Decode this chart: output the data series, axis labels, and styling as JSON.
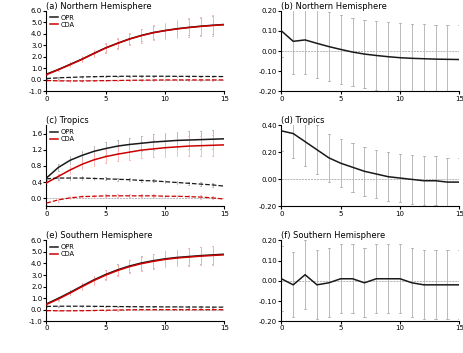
{
  "title_a": "(a) Northern Hemisphere",
  "title_b": "(b) Northern Hemisphere",
  "title_c": "(c) Tropics",
  "title_d": "(d) Tropics",
  "title_e": "(e) Southern Hemisphere",
  "title_f": "(f) Southern Hemisphere",
  "x": [
    0,
    1,
    2,
    3,
    4,
    5,
    6,
    7,
    8,
    9,
    10,
    11,
    12,
    13,
    14,
    15
  ],
  "a_opr_rmse": [
    0.5,
    0.9,
    1.35,
    1.8,
    2.3,
    2.78,
    3.18,
    3.55,
    3.85,
    4.1,
    4.28,
    4.43,
    4.55,
    4.65,
    4.73,
    4.8
  ],
  "a_opr_rmse_std": [
    0.05,
    0.1,
    0.17,
    0.22,
    0.28,
    0.34,
    0.4,
    0.46,
    0.52,
    0.56,
    0.6,
    0.65,
    0.7,
    0.74,
    0.78,
    0.82
  ],
  "a_opr_bias": [
    0.12,
    0.18,
    0.22,
    0.26,
    0.28,
    0.3,
    0.31,
    0.32,
    0.32,
    0.32,
    0.32,
    0.31,
    0.31,
    0.3,
    0.3,
    0.29
  ],
  "a_opr_bias_std": [
    0.05,
    0.06,
    0.06,
    0.06,
    0.06,
    0.06,
    0.06,
    0.06,
    0.06,
    0.06,
    0.06,
    0.06,
    0.06,
    0.06,
    0.06,
    0.06
  ],
  "a_cda_rmse": [
    0.45,
    0.88,
    1.32,
    1.78,
    2.28,
    2.76,
    3.16,
    3.53,
    3.83,
    4.08,
    4.26,
    4.41,
    4.53,
    4.63,
    4.71,
    4.78
  ],
  "a_cda_rmse_std": [
    0.05,
    0.13,
    0.2,
    0.27,
    0.33,
    0.4,
    0.47,
    0.54,
    0.6,
    0.65,
    0.7,
    0.75,
    0.8,
    0.85,
    0.9,
    0.95
  ],
  "a_cda_bias": [
    -0.05,
    -0.08,
    -0.09,
    -0.09,
    -0.08,
    -0.06,
    -0.05,
    -0.03,
    -0.02,
    -0.01,
    0.0,
    0.0,
    0.0,
    0.0,
    0.0,
    0.0
  ],
  "a_cda_bias_std": [
    0.05,
    0.05,
    0.05,
    0.05,
    0.05,
    0.05,
    0.05,
    0.05,
    0.05,
    0.05,
    0.05,
    0.05,
    0.05,
    0.05,
    0.05,
    0.05
  ],
  "a_ylim": [
    -1.0,
    6.0
  ],
  "a_yticks": [
    -1.0,
    0.0,
    1.0,
    2.0,
    3.0,
    4.0,
    5.0,
    6.0
  ],
  "b_diff": [
    0.1,
    0.048,
    0.055,
    0.038,
    0.022,
    0.008,
    -0.005,
    -0.015,
    -0.022,
    -0.028,
    -0.033,
    -0.036,
    -0.038,
    -0.04,
    -0.041,
    -0.042
  ],
  "b_diff_std": [
    0.13,
    0.16,
    0.17,
    0.17,
    0.17,
    0.17,
    0.17,
    0.17,
    0.17,
    0.17,
    0.17,
    0.17,
    0.17,
    0.17,
    0.17,
    0.17
  ],
  "b_ylim": [
    -0.2,
    0.2
  ],
  "b_yticks": [
    -0.2,
    -0.1,
    0.0,
    0.1,
    0.2
  ],
  "c_opr_rmse": [
    0.5,
    0.76,
    0.94,
    1.06,
    1.16,
    1.23,
    1.29,
    1.33,
    1.36,
    1.39,
    1.41,
    1.43,
    1.44,
    1.45,
    1.46,
    1.47
  ],
  "c_opr_rmse_std": [
    0.05,
    0.08,
    0.1,
    0.12,
    0.14,
    0.15,
    0.16,
    0.17,
    0.18,
    0.19,
    0.2,
    0.21,
    0.22,
    0.22,
    0.23,
    0.24
  ],
  "c_opr_bias": [
    0.48,
    0.5,
    0.5,
    0.5,
    0.49,
    0.48,
    0.47,
    0.46,
    0.44,
    0.43,
    0.41,
    0.39,
    0.37,
    0.35,
    0.33,
    0.3
  ],
  "c_opr_bias_std": [
    0.04,
    0.04,
    0.04,
    0.04,
    0.04,
    0.04,
    0.04,
    0.04,
    0.04,
    0.04,
    0.04,
    0.04,
    0.04,
    0.04,
    0.04,
    0.04
  ],
  "c_cda_rmse": [
    0.38,
    0.54,
    0.7,
    0.84,
    0.95,
    1.03,
    1.09,
    1.14,
    1.19,
    1.22,
    1.25,
    1.27,
    1.29,
    1.3,
    1.31,
    1.32
  ],
  "c_cda_rmse_std": [
    0.04,
    0.07,
    0.1,
    0.12,
    0.15,
    0.16,
    0.18,
    0.19,
    0.2,
    0.21,
    0.22,
    0.23,
    0.24,
    0.25,
    0.26,
    0.27
  ],
  "c_cda_bias": [
    -0.12,
    -0.04,
    0.01,
    0.04,
    0.05,
    0.06,
    0.06,
    0.06,
    0.06,
    0.06,
    0.05,
    0.05,
    0.04,
    0.03,
    0.01,
    -0.02
  ],
  "c_cda_bias_std": [
    0.04,
    0.04,
    0.04,
    0.04,
    0.04,
    0.04,
    0.04,
    0.04,
    0.04,
    0.04,
    0.04,
    0.04,
    0.04,
    0.04,
    0.04,
    0.04
  ],
  "c_ylim": [
    -0.2,
    1.8
  ],
  "c_yticks": [
    0.0,
    0.4,
    0.8,
    1.2,
    1.6
  ],
  "d_diff": [
    0.36,
    0.34,
    0.28,
    0.22,
    0.16,
    0.12,
    0.09,
    0.06,
    0.04,
    0.02,
    0.01,
    0.0,
    -0.01,
    -0.01,
    -0.02,
    -0.02
  ],
  "d_diff_std": [
    0.15,
    0.18,
    0.18,
    0.18,
    0.18,
    0.18,
    0.18,
    0.18,
    0.18,
    0.18,
    0.18,
    0.18,
    0.18,
    0.18,
    0.18,
    0.18
  ],
  "d_ylim": [
    -0.2,
    0.4
  ],
  "d_yticks": [
    -0.2,
    0.0,
    0.2,
    0.4
  ],
  "e_opr_rmse": [
    0.5,
    0.98,
    1.5,
    2.05,
    2.58,
    3.05,
    3.45,
    3.78,
    4.04,
    4.24,
    4.4,
    4.52,
    4.6,
    4.68,
    4.74,
    4.8
  ],
  "e_opr_rmse_std": [
    0.05,
    0.12,
    0.19,
    0.27,
    0.34,
    0.41,
    0.47,
    0.52,
    0.57,
    0.61,
    0.65,
    0.68,
    0.71,
    0.74,
    0.77,
    0.8
  ],
  "e_opr_bias": [
    0.28,
    0.3,
    0.3,
    0.3,
    0.29,
    0.28,
    0.27,
    0.26,
    0.25,
    0.25,
    0.24,
    0.24,
    0.23,
    0.23,
    0.22,
    0.22
  ],
  "e_opr_bias_std": [
    0.05,
    0.05,
    0.05,
    0.05,
    0.05,
    0.05,
    0.05,
    0.05,
    0.05,
    0.05,
    0.05,
    0.05,
    0.05,
    0.05,
    0.05,
    0.05
  ],
  "e_cda_rmse": [
    0.45,
    0.92,
    1.44,
    1.99,
    2.52,
    2.99,
    3.39,
    3.72,
    3.98,
    4.18,
    4.35,
    4.47,
    4.55,
    4.63,
    4.69,
    4.75
  ],
  "e_cda_rmse_std": [
    0.05,
    0.13,
    0.21,
    0.29,
    0.37,
    0.44,
    0.5,
    0.56,
    0.61,
    0.65,
    0.69,
    0.72,
    0.75,
    0.78,
    0.81,
    0.84
  ],
  "e_cda_bias": [
    -0.08,
    -0.1,
    -0.1,
    -0.09,
    -0.07,
    -0.05,
    -0.03,
    -0.01,
    0.0,
    0.0,
    0.0,
    0.0,
    0.0,
    0.0,
    0.0,
    0.0
  ],
  "e_cda_bias_std": [
    0.05,
    0.05,
    0.05,
    0.05,
    0.05,
    0.05,
    0.05,
    0.05,
    0.05,
    0.05,
    0.05,
    0.05,
    0.05,
    0.05,
    0.05,
    0.05
  ],
  "e_ylim": [
    -1.0,
    6.0
  ],
  "e_yticks": [
    -1.0,
    0.0,
    1.0,
    2.0,
    3.0,
    4.0,
    5.0,
    6.0
  ],
  "f_diff": [
    0.01,
    -0.02,
    0.03,
    -0.02,
    -0.01,
    0.01,
    0.01,
    -0.01,
    0.01,
    0.01,
    0.01,
    -0.01,
    -0.02,
    -0.02,
    -0.02,
    -0.02
  ],
  "f_diff_std": [
    0.16,
    0.16,
    0.17,
    0.17,
    0.17,
    0.17,
    0.17,
    0.17,
    0.17,
    0.17,
    0.17,
    0.17,
    0.17,
    0.17,
    0.17,
    0.17
  ],
  "f_ylim": [
    -0.2,
    0.2
  ],
  "f_yticks": [
    -0.2,
    -0.1,
    0.0,
    0.1,
    0.2
  ],
  "color_opr": "#1a1a1a",
  "color_cda": "#cc0000",
  "color_errbar_opr": "#b0b0b0",
  "color_errbar_cda": "#ffb0b0",
  "legend_opr": "OPR",
  "legend_cda": "CDA"
}
